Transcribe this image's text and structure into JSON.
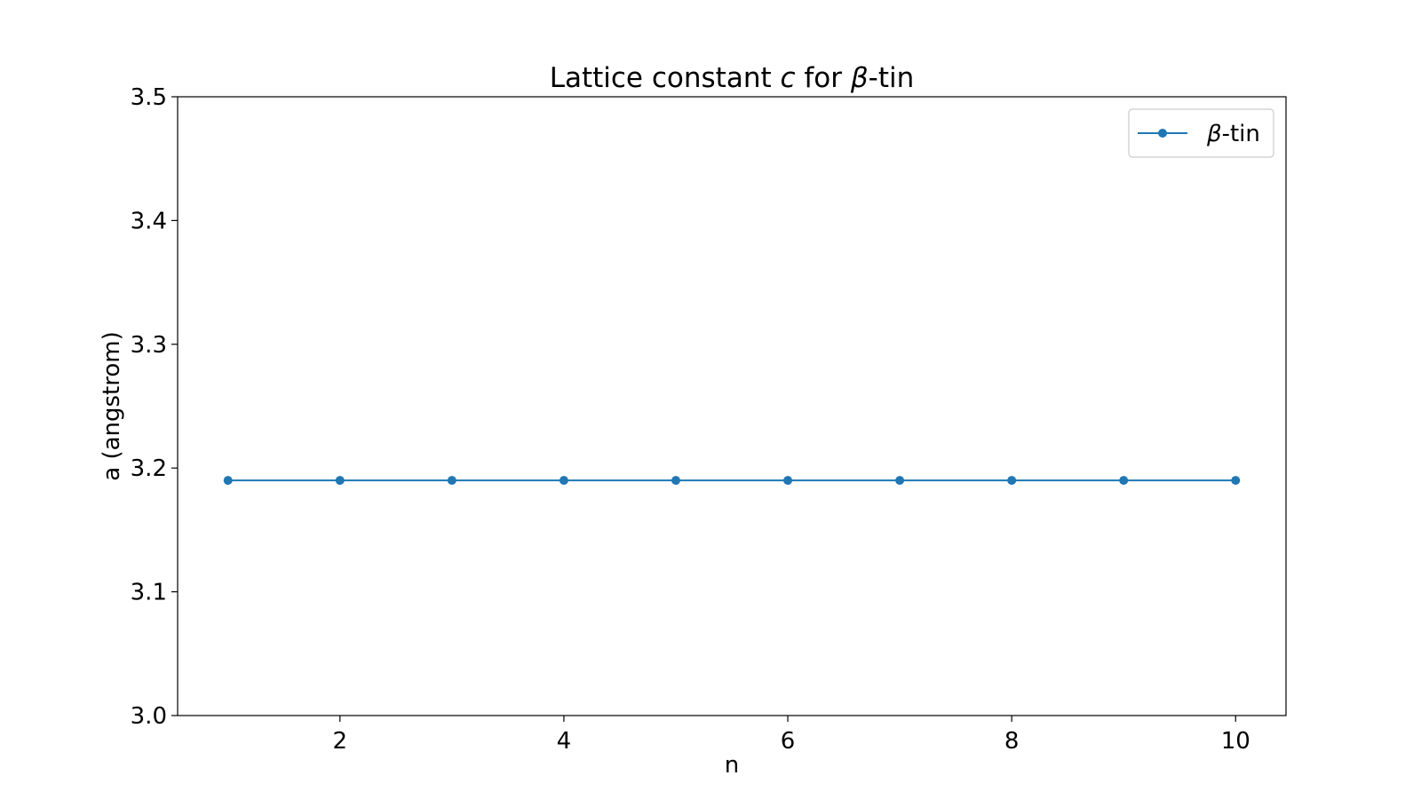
{
  "chart_data": {
    "type": "line",
    "title_parts": [
      {
        "text": "Lattice constant ",
        "italic": false
      },
      {
        "text": "c",
        "italic": true
      },
      {
        "text": " for ",
        "italic": false
      },
      {
        "text": "β",
        "italic": true
      },
      {
        "text": "-tin",
        "italic": false
      }
    ],
    "xlabel": "n",
    "ylabel": "a (angstrom)",
    "xlim": [
      0.55,
      10.45
    ],
    "ylim": [
      3.0,
      3.5
    ],
    "xticks": [
      2,
      4,
      6,
      8,
      10
    ],
    "xtick_labels": [
      "2",
      "4",
      "6",
      "8",
      "10"
    ],
    "yticks": [
      3.0,
      3.1,
      3.2,
      3.3,
      3.4,
      3.5
    ],
    "ytick_labels": [
      "3.0",
      "3.1",
      "3.2",
      "3.3",
      "3.4",
      "3.5"
    ],
    "grid": false,
    "legend_position": "top-right",
    "series": [
      {
        "name_parts": [
          {
            "text": "β",
            "italic": true
          },
          {
            "text": "-tin",
            "italic": false
          }
        ],
        "color": "#1f77b4",
        "marker": "circle",
        "x": [
          1,
          2,
          3,
          4,
          5,
          6,
          7,
          8,
          9,
          10
        ],
        "y": [
          3.19,
          3.19,
          3.19,
          3.19,
          3.19,
          3.19,
          3.19,
          3.19,
          3.19,
          3.19
        ]
      }
    ]
  }
}
